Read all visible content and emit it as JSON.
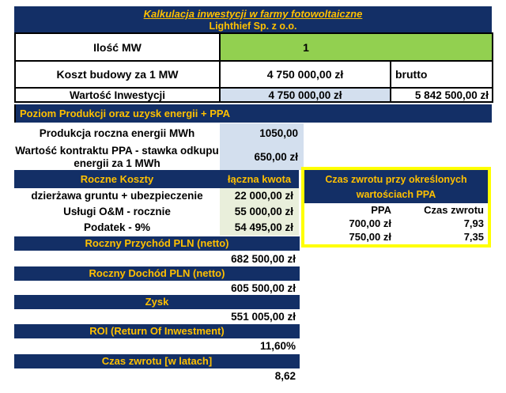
{
  "header": {
    "title": "Kalkulacja inwestycji w farmy fotowoltaiczne",
    "subtitle": "Lighthief Sp. z o.o."
  },
  "investment_table": {
    "rows": [
      {
        "label": "Ilość MW",
        "value": "1"
      },
      {
        "label": "Koszt budowy za 1 MW",
        "value": "4 750 000,00 zł",
        "note": "brutto"
      },
      {
        "label": "Wartość Inwestycji",
        "value": "4 750 000,00 zł",
        "gross": "5 842 500,00 zł"
      }
    ]
  },
  "production": {
    "header": "Poziom Produkcji oraz uzysk energii + PPA",
    "rows": [
      {
        "label": "Produkcja roczna energii MWh",
        "value": "1050,00"
      },
      {
        "label": "Wartość kontraktu PPA - stawka odkupu energii za 1 MWh",
        "value": "650,00 zł"
      }
    ]
  },
  "costs": {
    "header": "Roczne Koszty",
    "amount_header": "łączna kwota",
    "rows": [
      {
        "label": "dzierżawa gruntu + ubezpieczenie",
        "value": "22 000,00 zł"
      },
      {
        "label": "Usługi O&M - rocznie",
        "value": "55 000,00 zł"
      },
      {
        "label": "Podatek - 9%",
        "value": "54 495,00 zł"
      }
    ]
  },
  "payback_box": {
    "title": "Czas zwrotu przy określonych wartościach PPA",
    "col_ppa": "PPA",
    "col_payback": "Czas zwrotu",
    "rows": [
      {
        "ppa": "700,00 zł",
        "payback": "7,93"
      },
      {
        "ppa": "750,00 zł",
        "payback": "7,35"
      }
    ]
  },
  "summary": {
    "items": [
      {
        "label": "Roczny Przychód PLN (netto)",
        "value": "682 500,00 zł"
      },
      {
        "label": "Roczny Dochód PLN (netto)",
        "value": "605 500,00 zł"
      },
      {
        "label": "Zysk",
        "value": "551 005,00 zł"
      },
      {
        "label": "ROI (Return Of Inwestment)",
        "value": "11,60%"
      },
      {
        "label": "Czas zwrotu [w latach]",
        "value": "8,62"
      }
    ]
  },
  "colors": {
    "navy": "#132f66",
    "gold": "#ffc000",
    "green": "#92d050",
    "light_blue": "#d3dfee",
    "light_green": "#e9efdb",
    "yellow": "#ffff00"
  }
}
